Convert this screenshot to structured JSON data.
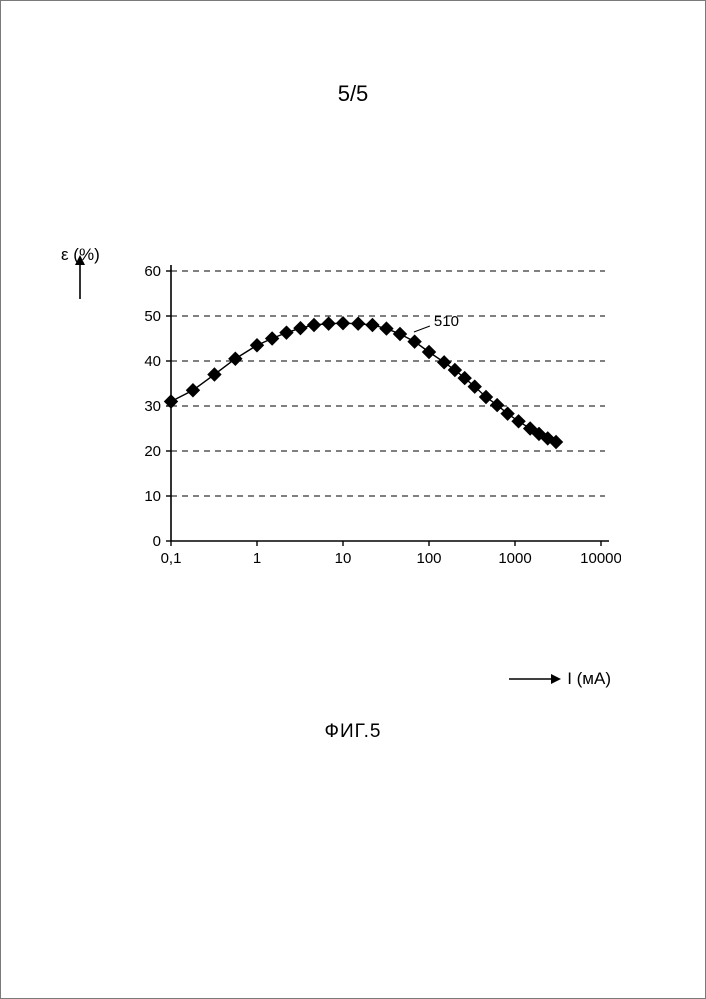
{
  "page_number": "5/5",
  "figure_caption": "ФИГ.5",
  "chart": {
    "type": "line-scatter",
    "background_color": "#ffffff",
    "grid_color": "#000000",
    "grid_dash": "6 5",
    "axis_color": "#000000",
    "line_color": "#000000",
    "marker_color": "#000000",
    "marker_shape": "diamond",
    "marker_size": 6.5,
    "line_width": 1.4,
    "tick_fontsize": 15,
    "y_axis": {
      "label": "ε (%)",
      "min": 0,
      "max": 60,
      "tick_step": 10,
      "ticks": [
        0,
        10,
        20,
        30,
        40,
        50,
        60
      ]
    },
    "x_axis": {
      "label": "I (мА)",
      "scale": "log",
      "min": 0.1,
      "max": 10000,
      "ticks": [
        0.1,
        1,
        10,
        100,
        1000,
        10000
      ],
      "tick_labels": [
        "0,1",
        "1",
        "10",
        "100",
        "1000",
        "10000"
      ]
    },
    "annotation": {
      "text": "510",
      "at_x": 60,
      "at_y": 46,
      "label_offset_x": 14,
      "label_offset_y": -2
    },
    "series": [
      {
        "name": "510",
        "points": [
          {
            "x": 0.1,
            "y": 31
          },
          {
            "x": 0.18,
            "y": 33.5
          },
          {
            "x": 0.32,
            "y": 37
          },
          {
            "x": 0.56,
            "y": 40.5
          },
          {
            "x": 1.0,
            "y": 43.5
          },
          {
            "x": 1.5,
            "y": 45
          },
          {
            "x": 2.2,
            "y": 46.3
          },
          {
            "x": 3.2,
            "y": 47.3
          },
          {
            "x": 4.6,
            "y": 48
          },
          {
            "x": 6.8,
            "y": 48.3
          },
          {
            "x": 10,
            "y": 48.4
          },
          {
            "x": 15,
            "y": 48.3
          },
          {
            "x": 22,
            "y": 48
          },
          {
            "x": 32,
            "y": 47.2
          },
          {
            "x": 46,
            "y": 46
          },
          {
            "x": 68,
            "y": 44.3
          },
          {
            "x": 100,
            "y": 42
          },
          {
            "x": 150,
            "y": 39.7
          },
          {
            "x": 200,
            "y": 38
          },
          {
            "x": 260,
            "y": 36.2
          },
          {
            "x": 340,
            "y": 34.3
          },
          {
            "x": 460,
            "y": 32
          },
          {
            "x": 620,
            "y": 30.2
          },
          {
            "x": 820,
            "y": 28.3
          },
          {
            "x": 1100,
            "y": 26.6
          },
          {
            "x": 1500,
            "y": 25
          },
          {
            "x": 1900,
            "y": 23.8
          },
          {
            "x": 2400,
            "y": 22.8
          },
          {
            "x": 3000,
            "y": 22
          }
        ]
      }
    ]
  },
  "arrows": {
    "y_label_arrow": "↑",
    "x_label_arrow": "→"
  }
}
